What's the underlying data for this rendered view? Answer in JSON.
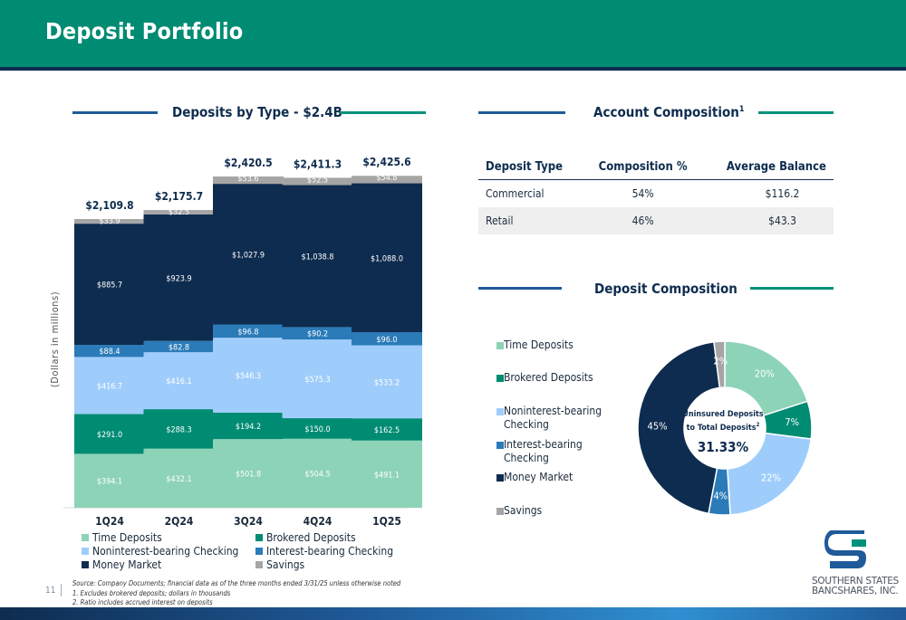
{
  "header": {
    "title": "Deposit Portfolio"
  },
  "left_section": {
    "title": "Deposits by Type - $2.4B"
  },
  "account_section": {
    "title": "Account Composition",
    "title_sup": "1",
    "columns": [
      "Deposit Type",
      "Composition %",
      "Average Balance"
    ],
    "rows": [
      {
        "type": "Commercial",
        "composition": "54%",
        "balance": "$116.2"
      },
      {
        "type": "Retail",
        "composition": "46%",
        "balance": "$43.3"
      }
    ]
  },
  "pie_section": {
    "title": "Deposit Composition",
    "center_label_1": "Uninsured Deposits",
    "center_label_2": "to Total Deposits",
    "center_sup": "2",
    "center_value": "31.33%"
  },
  "colors": {
    "time_deposits": "#8dd3b8",
    "brokered_deposits": "#008B73",
    "noninterest_checking": "#9fcdfb",
    "interest_checking": "#2b7bb9",
    "money_market": "#0e2c4f",
    "savings": "#a5a5a5",
    "header": "#008B73"
  },
  "chart_data": [
    {
      "type": "bar",
      "stacked": true,
      "title": "Deposits by Type - $2.4B",
      "ylabel": "(Dollars in millions)",
      "categories": [
        "1Q24",
        "2Q24",
        "3Q24",
        "4Q24",
        "1Q25"
      ],
      "series": [
        {
          "name": "Time Deposits",
          "values": [
            394.1,
            432.1,
            501.8,
            504.5,
            491.1
          ],
          "labels": [
            "$394.1",
            "$432.1",
            "$501.8",
            "$504.5",
            "$491.1"
          ]
        },
        {
          "name": "Brokered Deposits",
          "values": [
            291.0,
            288.3,
            194.2,
            150.0,
            162.5
          ],
          "labels": [
            "$291.0",
            "$288.3",
            "$194.2",
            "$150.0",
            "$162.5"
          ]
        },
        {
          "name": "Noninterest-bearing Checking",
          "values": [
            416.7,
            416.1,
            546.3,
            575.3,
            533.2
          ],
          "labels": [
            "$416.7",
            "$416.1",
            "$546.3",
            "$575.3",
            "$533.2"
          ]
        },
        {
          "name": "Interest-bearing Checking",
          "values": [
            88.4,
            82.8,
            96.8,
            90.2,
            96.0
          ],
          "labels": [
            "$88.4",
            "$82.8",
            "$96.8",
            "$90.2",
            "$96.0"
          ]
        },
        {
          "name": "Money Market",
          "values": [
            885.7,
            923.9,
            1027.9,
            1038.8,
            1088.0
          ],
          "labels": [
            "$885.7",
            "$923.9",
            "$1,027.9",
            "$1,038.8",
            "$1,088.0"
          ]
        },
        {
          "name": "Savings",
          "values": [
            33.9,
            32.5,
            53.6,
            52.5,
            54.8
          ],
          "labels": [
            "$33.9",
            "$32.5",
            "$53.6",
            "$52.5",
            "$54.8"
          ]
        }
      ],
      "totals": [
        "$2,109.8",
        "$2,175.7",
        "$2,420.5",
        "$2,411.3",
        "$2,425.6"
      ],
      "legend": [
        "Time Deposits",
        "Brokered Deposits",
        "Noninterest-bearing Checking",
        "Interest-bearing Checking",
        "Money Market",
        "Savings"
      ],
      "legend_position": "bottom"
    },
    {
      "type": "pie",
      "donut": true,
      "title": "Deposit Composition",
      "slices": [
        {
          "name": "Time Deposits",
          "value": 20,
          "label": "20%"
        },
        {
          "name": "Brokered Deposits",
          "value": 7,
          "label": "7%"
        },
        {
          "name": "Noninterest-bearing Checking",
          "value": 22,
          "label": "22%"
        },
        {
          "name": "Interest-bearing Checking",
          "value": 4,
          "label": "4%"
        },
        {
          "name": "Money Market",
          "value": 45,
          "label": "45%"
        },
        {
          "name": "Savings",
          "value": 2,
          "label": "2%"
        }
      ],
      "legend": [
        "Time Deposits",
        "Brokered Deposits",
        "Noninterest-bearing Checking",
        "Interest-bearing Checking",
        "Money Market",
        "Savings"
      ],
      "legend_position": "left"
    }
  ],
  "footnotes": {
    "source": "Source: Company Documents; financial data as of the three months ended 3/31/25 unless otherwise noted",
    "note1": "1.    Excludes brokered deposits; dollars in thousands",
    "note2": "2.    Ratio includes accrued interest on deposits"
  },
  "footer": {
    "page_number": "11",
    "logo_line1": "SOUTHERN STATES",
    "logo_line2": "BANCSHARES, INC."
  }
}
